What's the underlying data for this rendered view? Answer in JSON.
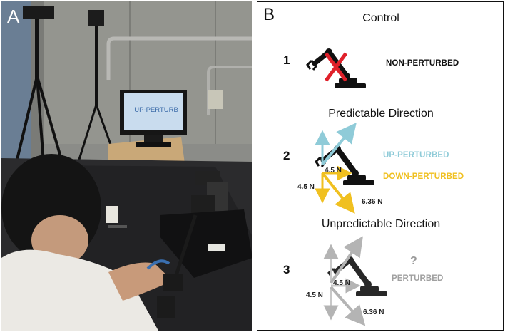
{
  "panel_a": {
    "letter": "A",
    "monitor_text": "UP-PERTURB"
  },
  "panel_b": {
    "letter": "B",
    "sections": [
      {
        "title": "Control",
        "number": "1",
        "labels": [
          "NON-PERTURBED"
        ]
      },
      {
        "title": "Predictable Direction",
        "number": "2",
        "labels": [
          "UP-PERTURBED",
          "DOWN-PERTURBED"
        ],
        "forces": [
          "4.5 N",
          "4.5 N",
          "6.36 N"
        ]
      },
      {
        "title": "Unpredictable Direction",
        "number": "3",
        "labels": [
          "PERTURBED"
        ],
        "question": "?",
        "forces": [
          "4.5 N",
          "4.5 N",
          "6.36 N"
        ]
      }
    ]
  },
  "colors": {
    "up": "#8fcbd8",
    "down": "#f0c020",
    "perturbed_gray": "#a0a0a0",
    "cross_red": "#e0202a",
    "robot_black": "#111111"
  }
}
